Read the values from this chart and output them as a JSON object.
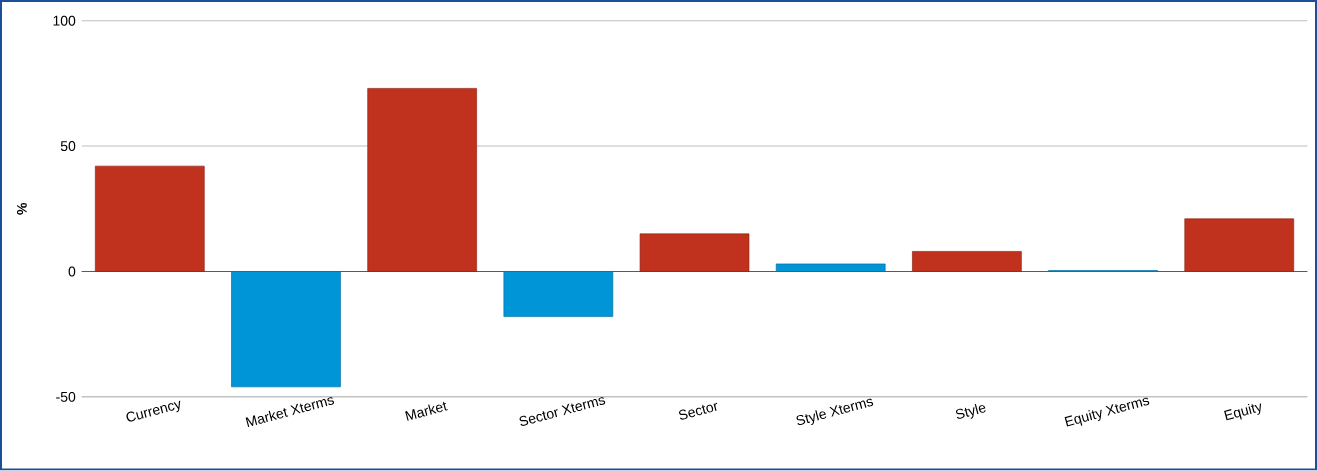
{
  "chart_data": {
    "type": "bar",
    "ylabel": "%",
    "categories": [
      "Currency",
      "Market Xterms",
      "Market",
      "Sector Xterms",
      "Sector",
      "Style Xterms",
      "Style",
      "Equity Xterms",
      "Equity"
    ],
    "values": [
      42,
      -46,
      73,
      -18,
      15,
      3,
      8,
      0.4,
      21
    ],
    "colors": [
      "#c0311e",
      "#0095d6",
      "#c0311e",
      "#0095d6",
      "#c0311e",
      "#0095d6",
      "#c0311e",
      "#0095d6",
      "#c0311e"
    ],
    "ylim": [
      -50,
      100
    ],
    "yticks": [
      -50,
      0,
      50,
      100
    ],
    "grid": "y"
  }
}
